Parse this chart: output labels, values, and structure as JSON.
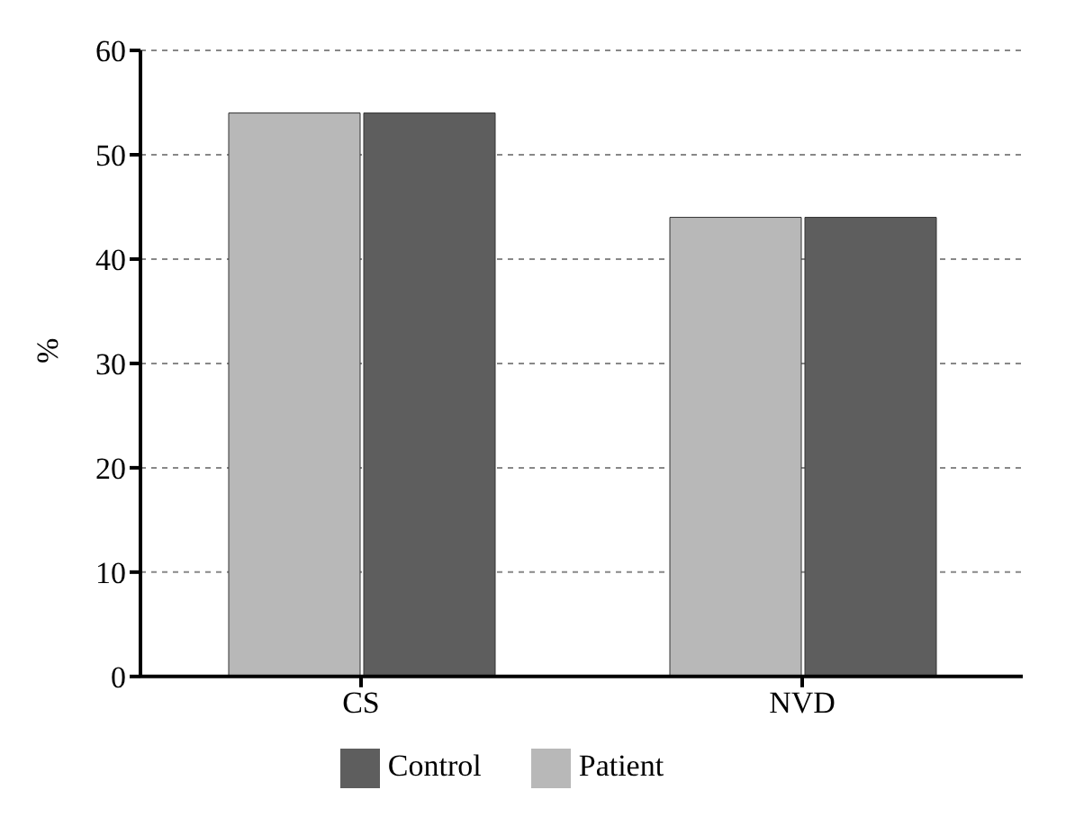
{
  "chart_data": {
    "type": "bar",
    "ylabel": "%",
    "categories": [
      "CS",
      "NVD"
    ],
    "series": [
      {
        "name": "Patient",
        "color": "#b8b8b8",
        "values": [
          54,
          44
        ]
      },
      {
        "name": "Control",
        "color": "#5e5e5e",
        "values": [
          54,
          44
        ]
      }
    ],
    "ylim": [
      0,
      60
    ],
    "yticks": [
      0,
      10,
      20,
      30,
      40,
      50,
      60
    ],
    "grid": "y",
    "legend": "bottom"
  }
}
